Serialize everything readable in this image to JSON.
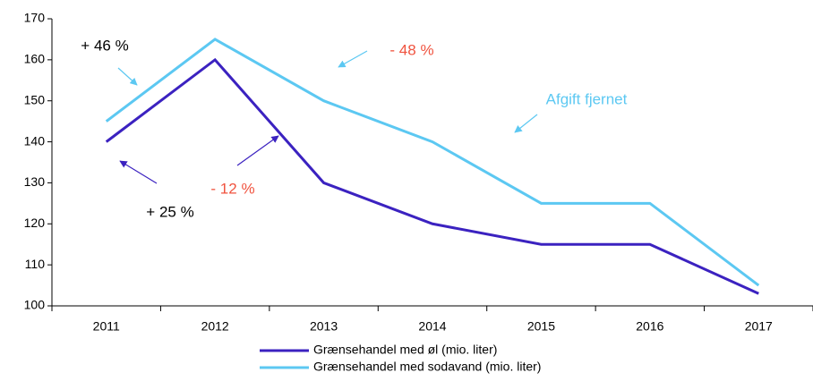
{
  "chart_data": {
    "type": "line",
    "categories": [
      "2011",
      "2012",
      "2013",
      "2014",
      "2015",
      "2016",
      "2017"
    ],
    "series": [
      {
        "name": "Grænsehandel med øl (mio. liter)",
        "color": "#3b22c0",
        "values": [
          140,
          160,
          130,
          120,
          115,
          115,
          103
        ]
      },
      {
        "name": "Grænsehandel med sodavand (mio. liter)",
        "color": "#5cc8f2",
        "values": [
          145,
          165,
          150,
          140,
          125,
          125,
          105
        ]
      }
    ],
    "ylim": [
      100,
      170
    ],
    "yticks": [
      100,
      110,
      120,
      130,
      140,
      150,
      160,
      170
    ],
    "annotations": [
      {
        "text": "+ 46 %",
        "color": "#000000"
      },
      {
        "text": "- 48 %",
        "color": "#f0533f"
      },
      {
        "text": "Afgift fjernet",
        "color": "#5cc8f2"
      },
      {
        "text": "- 12 %",
        "color": "#f0533f"
      },
      {
        "text": "+ 25 %",
        "color": "#000000"
      }
    ],
    "legend": "bottom"
  }
}
